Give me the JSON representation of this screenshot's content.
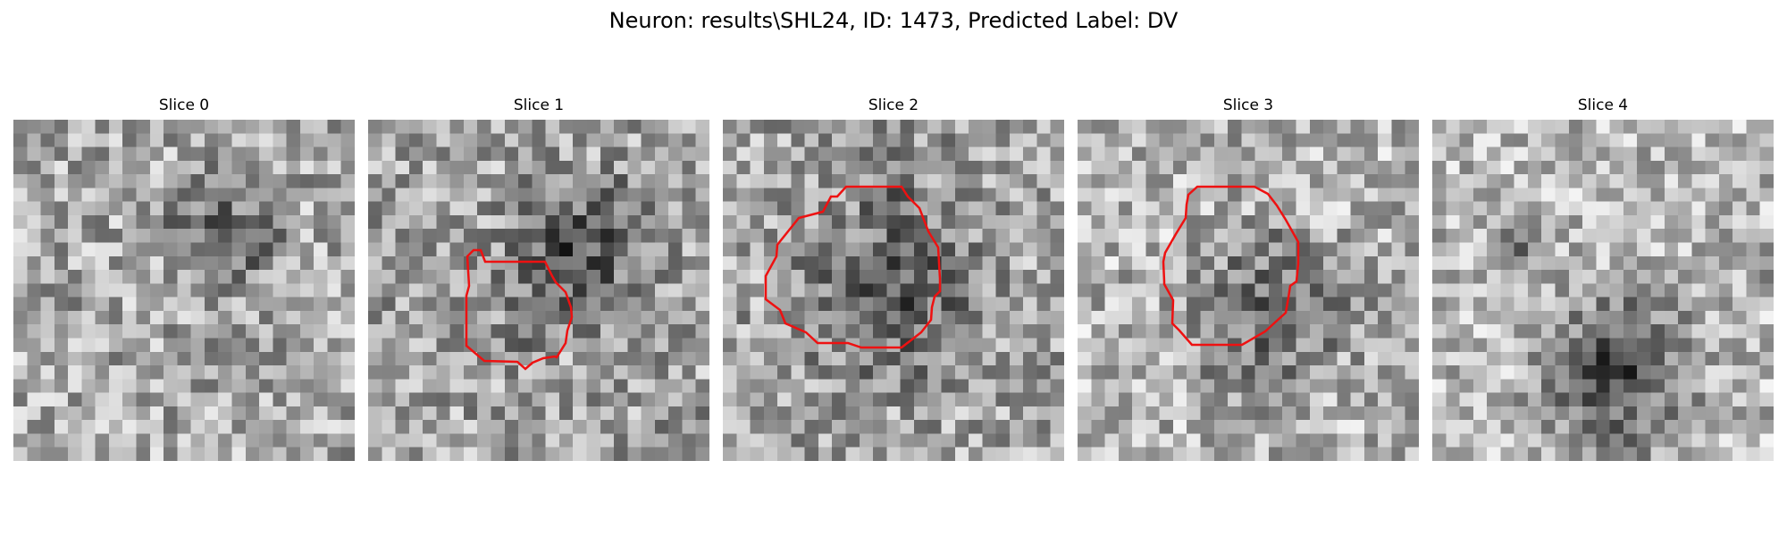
{
  "figure": {
    "title": "Neuron: results\\SHL24, ID: 1473, Predicted Label: DV"
  },
  "colors": {
    "background": "#ffffff",
    "contour": "#ee1111",
    "pixel_dark": "#101010",
    "pixel_light": "#f4f4f4"
  },
  "panels": [
    {
      "title": "Slice 0",
      "has_contour": false
    },
    {
      "title": "Slice 1",
      "has_contour": true
    },
    {
      "title": "Slice 2",
      "has_contour": true
    },
    {
      "title": "Slice 3",
      "has_contour": true
    },
    {
      "title": "Slice 4",
      "has_contour": false
    }
  ]
}
